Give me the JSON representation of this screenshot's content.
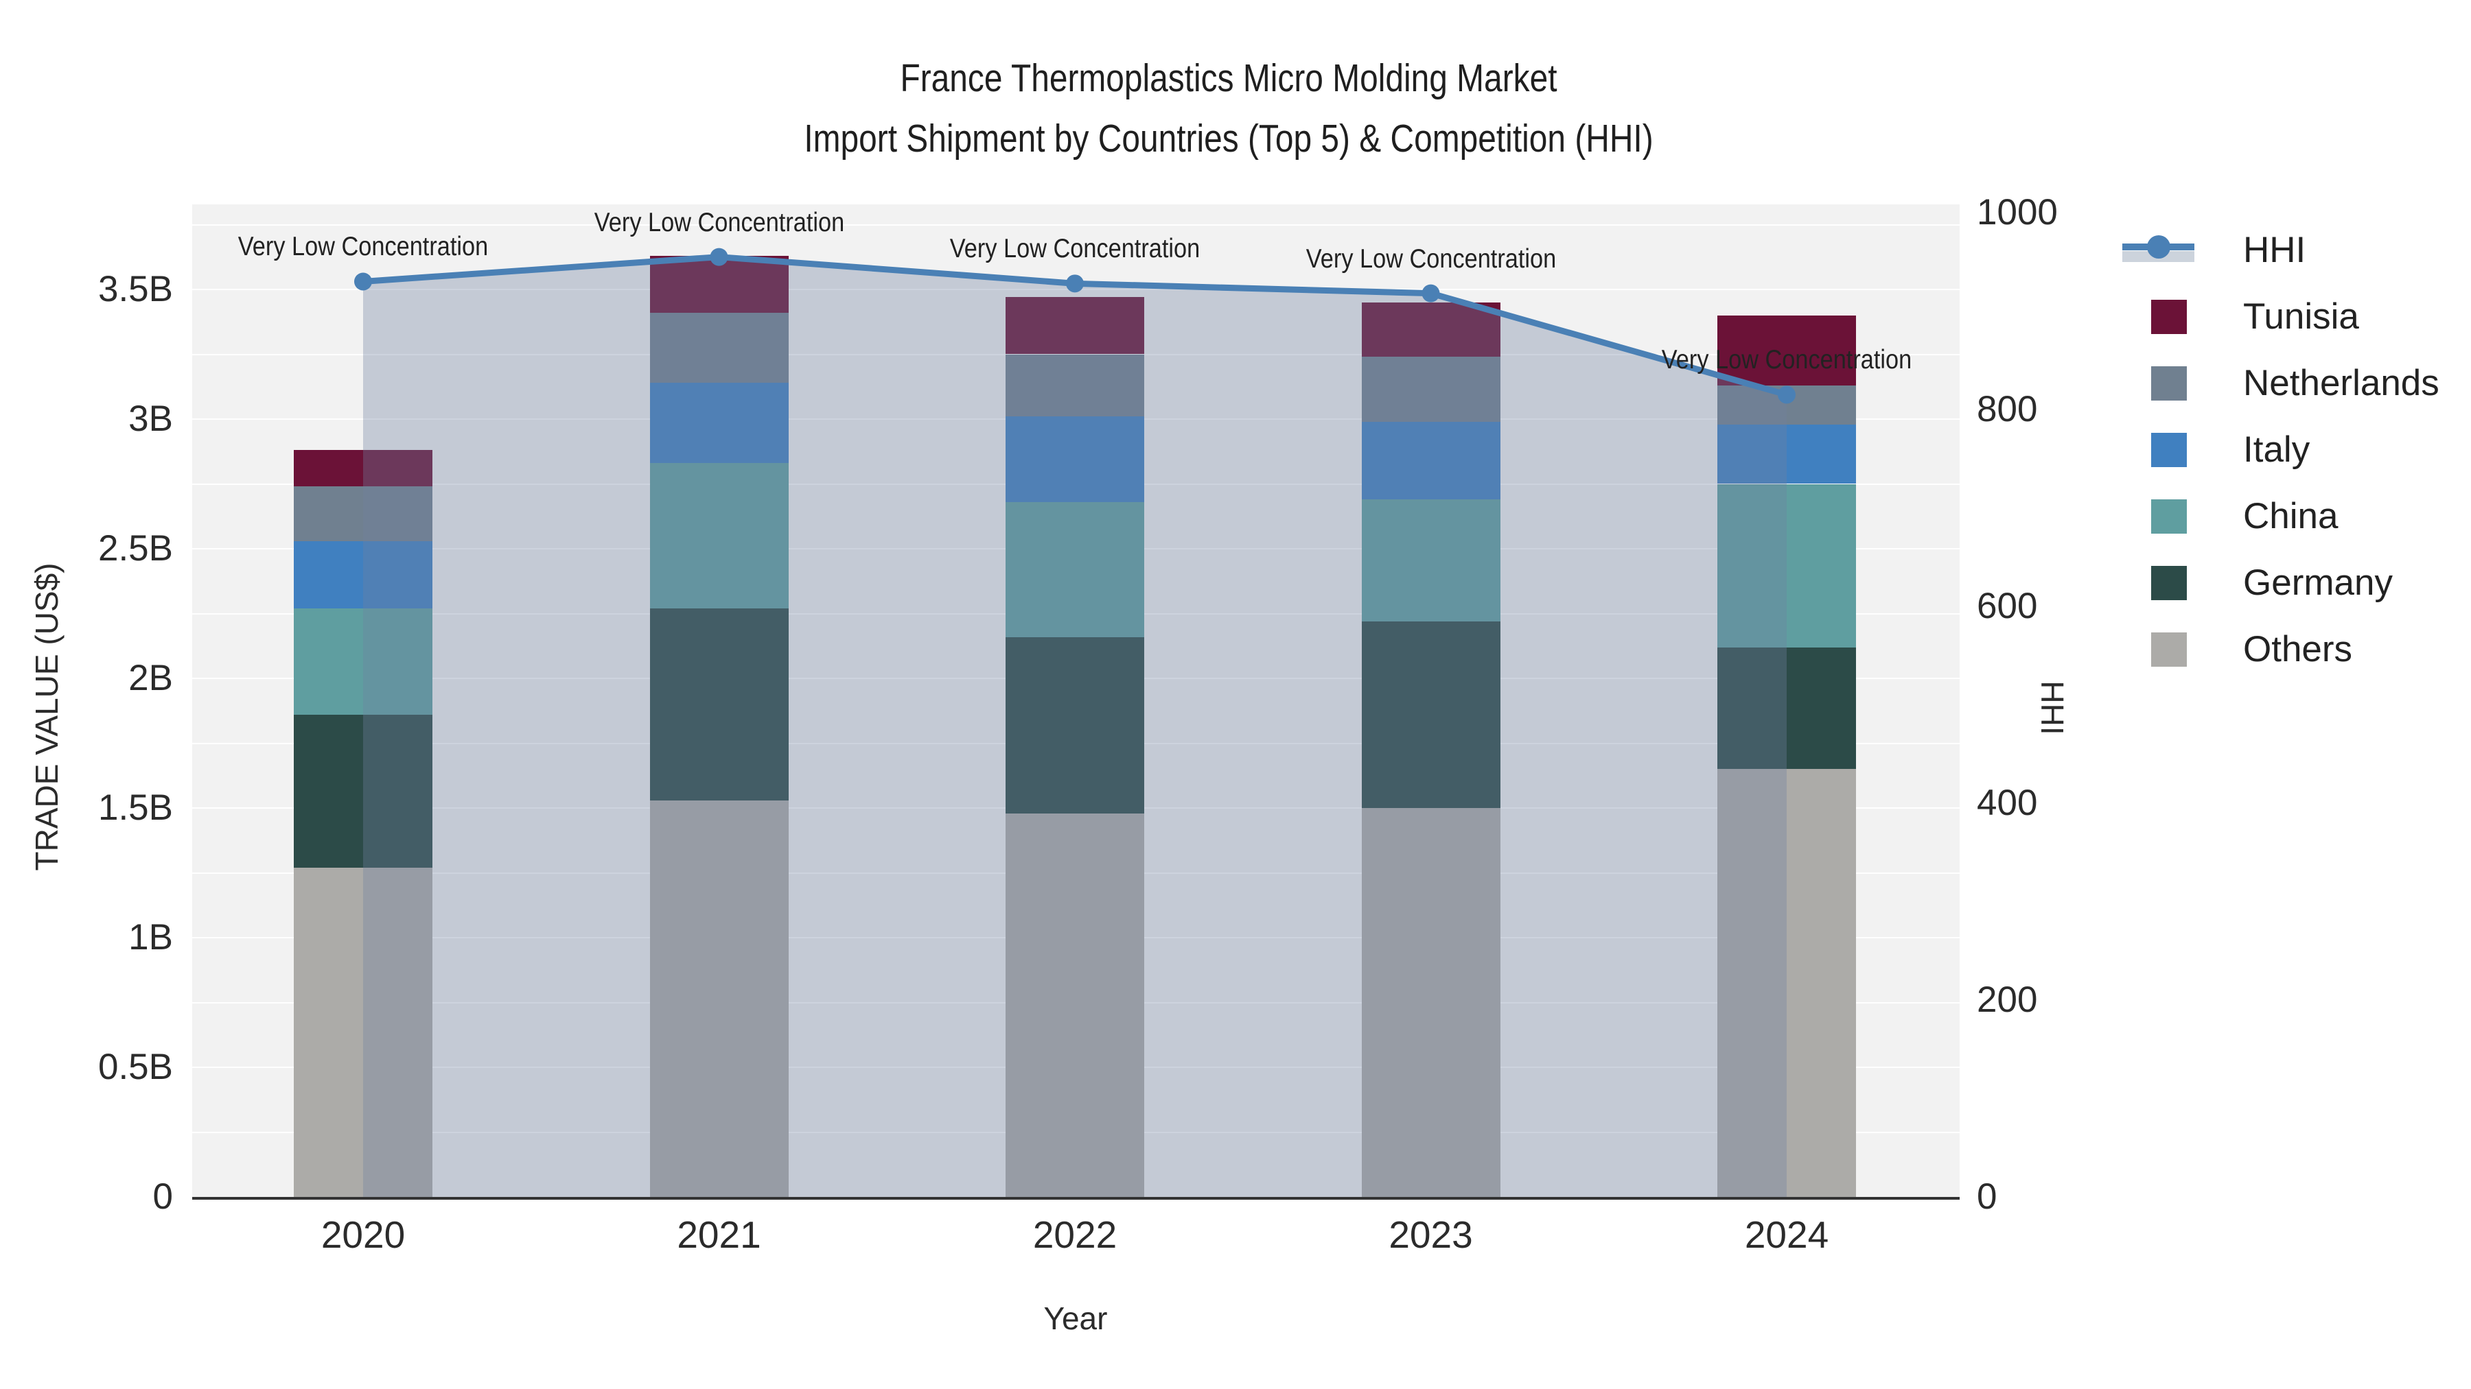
{
  "title": {
    "line1": "France Thermoplastics Micro Molding Market",
    "line2": "Import Shipment by Countries (Top 5) & Competition (HHI)"
  },
  "chart_data": {
    "type": "bar",
    "subtype": "stacked-bars-with-line-overlay",
    "categories": [
      "2020",
      "2021",
      "2022",
      "2023",
      "2024"
    ],
    "xlabel": "Year",
    "y_left": {
      "label": "TRADE VALUE (US$)",
      "tick_values": [
        0,
        0.5,
        1,
        1.5,
        2,
        2.5,
        3,
        3.5
      ],
      "tick_labels": [
        "0",
        "0.5B",
        "1B",
        "1.5B",
        "2B",
        "2.5B",
        "3B",
        "3.5B"
      ],
      "range": [
        0,
        3.83
      ],
      "units": "billions USD",
      "grid": "on, minor step 0.25B"
    },
    "y_right": {
      "label": "HHI",
      "tick_values": [
        0,
        200,
        400,
        600,
        800,
        1000
      ],
      "tick_labels": [
        "0",
        "200",
        "400",
        "600",
        "800",
        "1000"
      ],
      "range": [
        0,
        1000
      ]
    },
    "series": [
      {
        "name": "Others",
        "color": "#acaba8",
        "values": [
          1.27,
          1.53,
          1.48,
          1.5,
          1.65
        ]
      },
      {
        "name": "Germany",
        "color": "#2c4b48",
        "values": [
          0.59,
          0.74,
          0.68,
          0.72,
          0.47
        ]
      },
      {
        "name": "China",
        "color": "#5f9ea0",
        "values": [
          0.41,
          0.56,
          0.52,
          0.47,
          0.63
        ]
      },
      {
        "name": "Italy",
        "color": "#4080c0",
        "values": [
          0.26,
          0.31,
          0.33,
          0.3,
          0.23
        ]
      },
      {
        "name": "Netherlands",
        "color": "#708090",
        "values": [
          0.21,
          0.27,
          0.24,
          0.25,
          0.15
        ]
      },
      {
        "name": "Tunisia",
        "color": "#6b1237",
        "values": [
          0.14,
          0.22,
          0.22,
          0.21,
          0.27
        ]
      }
    ],
    "bar_totals": [
      2.88,
      3.63,
      3.47,
      3.45,
      3.4
    ],
    "line_series": {
      "name": "HHI",
      "color": "#4a80b5",
      "area_fill": "rgba(112,128,160,0.35)",
      "values": [
        930,
        955,
        928,
        918,
        815
      ]
    },
    "annotations": [
      {
        "text": "Very Low Concentration",
        "category": "2020"
      },
      {
        "text": "Very Low Concentration",
        "category": "2021"
      },
      {
        "text": "Very Low Concentration",
        "category": "2022"
      },
      {
        "text": "Very Low Concentration",
        "category": "2023"
      },
      {
        "text": "Very Low Concentration",
        "category": "2024"
      }
    ],
    "legend": {
      "position": "right",
      "items": [
        {
          "label": "HHI",
          "symbol": "line-dot-area",
          "color": "#4a80b5"
        },
        {
          "label": "Tunisia",
          "symbol": "square",
          "color": "#6b1237"
        },
        {
          "label": "Netherlands",
          "symbol": "square",
          "color": "#708090"
        },
        {
          "label": "Italy",
          "symbol": "square",
          "color": "#4080c0"
        },
        {
          "label": "China",
          "symbol": "square",
          "color": "#5f9ea0"
        },
        {
          "label": "Germany",
          "symbol": "square",
          "color": "#2c4b48"
        },
        {
          "label": "Others",
          "symbol": "square",
          "color": "#acaba8"
        }
      ]
    },
    "colors": {
      "plot_background": "#f2f2f2",
      "gridline": "#ffffff",
      "axis_line": "#333333",
      "text": "#2b2b2b"
    }
  }
}
